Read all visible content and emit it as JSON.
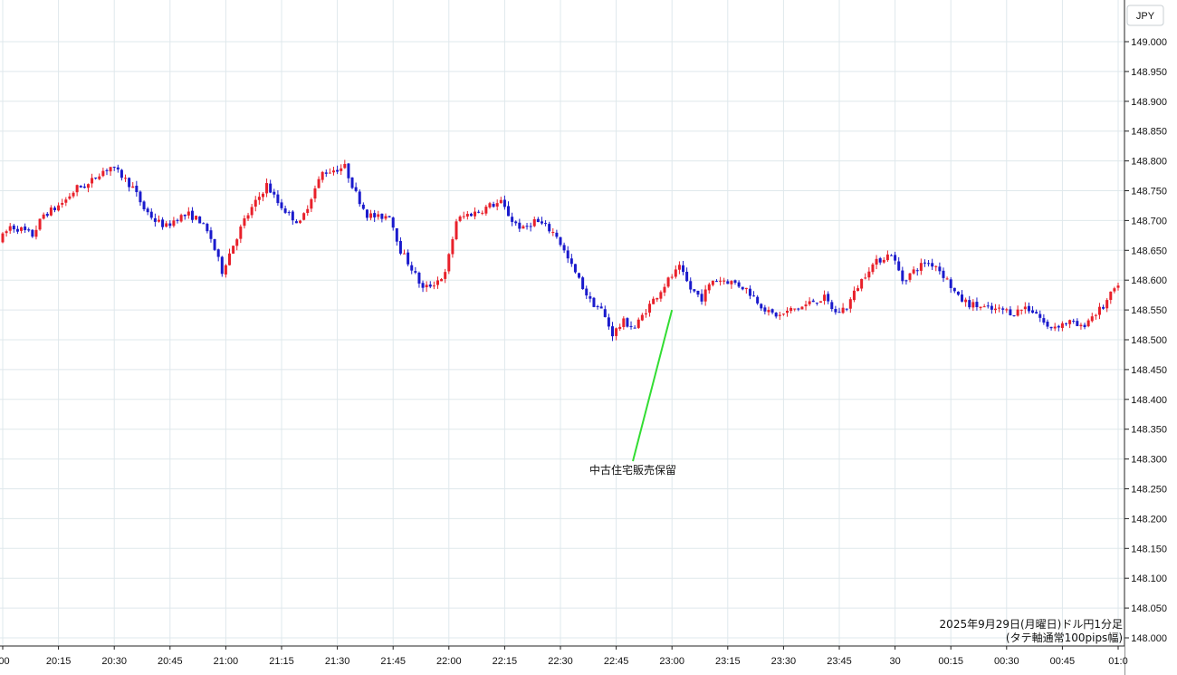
{
  "chart_data": {
    "type": "candlestick",
    "title": "2025年9月29日(月曜日)ドル円1分足",
    "subtitle": "(タテ軸通常100pips幅)",
    "currency_label": "JPY",
    "y_ticks": [
      "149.000",
      "148.950",
      "148.900",
      "148.850",
      "148.800",
      "148.750",
      "148.700",
      "148.650",
      "148.600",
      "148.550",
      "148.500",
      "148.450",
      "148.400",
      "148.350",
      "148.300",
      "148.250",
      "148.200",
      "148.150",
      "148.100",
      "148.050",
      "148.000"
    ],
    "ylim": [
      148.0,
      149.0
    ],
    "x_ticks": [
      ":00",
      "20:15",
      "20:30",
      "20:45",
      "21:00",
      "21:15",
      "21:30",
      "21:45",
      "22:00",
      "22:15",
      "22:30",
      "22:45",
      "23:00",
      "23:15",
      "23:30",
      "23:45",
      "30",
      "00:15",
      "00:30",
      "00:45",
      "01:0"
    ],
    "x_start": "20:00",
    "x_end": "01:00",
    "annotation": {
      "text": "中古住宅販売保留",
      "time": "23:00",
      "value": 148.55
    },
    "grid": true,
    "colors": {
      "up": "#e8202a",
      "down": "#1a1acc",
      "grid": "#dfe8ec",
      "annotation_line": "#33dd33"
    },
    "price_path": [
      [
        "20:00",
        148.665
      ],
      [
        "20:03",
        148.69
      ],
      [
        "20:06",
        148.685
      ],
      [
        "20:09",
        148.675
      ],
      [
        "20:12",
        148.71
      ],
      [
        "20:15",
        148.72
      ],
      [
        "20:18",
        148.735
      ],
      [
        "20:21",
        148.755
      ],
      [
        "20:24",
        148.76
      ],
      [
        "20:27",
        148.78
      ],
      [
        "20:30",
        148.79
      ],
      [
        "20:33",
        148.775
      ],
      [
        "20:36",
        148.755
      ],
      [
        "20:39",
        148.72
      ],
      [
        "20:42",
        148.7
      ],
      [
        "20:45",
        148.69
      ],
      [
        "20:48",
        148.705
      ],
      [
        "20:51",
        148.71
      ],
      [
        "20:54",
        148.7
      ],
      [
        "20:57",
        148.67
      ],
      [
        "21:00",
        148.615
      ],
      [
        "21:03",
        148.66
      ],
      [
        "21:06",
        148.7
      ],
      [
        "21:09",
        148.73
      ],
      [
        "21:12",
        148.76
      ],
      [
        "21:15",
        148.73
      ],
      [
        "21:18",
        148.71
      ],
      [
        "21:21",
        148.695
      ],
      [
        "21:24",
        148.74
      ],
      [
        "21:27",
        148.78
      ],
      [
        "21:30",
        148.785
      ],
      [
        "21:33",
        148.79
      ],
      [
        "21:36",
        148.745
      ],
      [
        "21:39",
        148.71
      ],
      [
        "21:42",
        148.705
      ],
      [
        "21:45",
        148.71
      ],
      [
        "21:48",
        148.65
      ],
      [
        "21:51",
        148.62
      ],
      [
        "21:54",
        148.585
      ],
      [
        "21:57",
        148.595
      ],
      [
        "22:00",
        148.61
      ],
      [
        "22:03",
        148.7
      ],
      [
        "22:06",
        148.71
      ],
      [
        "22:09",
        148.715
      ],
      [
        "22:12",
        148.725
      ],
      [
        "22:15",
        148.73
      ],
      [
        "22:18",
        148.7
      ],
      [
        "22:21",
        148.685
      ],
      [
        "22:24",
        148.7
      ],
      [
        "22:27",
        148.69
      ],
      [
        "22:30",
        148.675
      ],
      [
        "22:33",
        148.635
      ],
      [
        "22:36",
        148.6
      ],
      [
        "22:39",
        148.565
      ],
      [
        "22:42",
        148.55
      ],
      [
        "22:45",
        148.51
      ],
      [
        "22:48",
        148.53
      ],
      [
        "22:51",
        148.52
      ],
      [
        "22:54",
        148.55
      ],
      [
        "22:57",
        148.575
      ],
      [
        "23:00",
        148.6
      ],
      [
        "23:03",
        148.62
      ],
      [
        "23:06",
        148.585
      ],
      [
        "23:09",
        148.57
      ],
      [
        "23:12",
        148.6
      ],
      [
        "23:15",
        148.6
      ],
      [
        "23:18",
        148.595
      ],
      [
        "23:21",
        148.585
      ],
      [
        "23:24",
        148.565
      ],
      [
        "23:27",
        148.545
      ],
      [
        "23:30",
        148.54
      ],
      [
        "23:33",
        148.55
      ],
      [
        "23:36",
        148.555
      ],
      [
        "23:39",
        148.565
      ],
      [
        "23:42",
        148.57
      ],
      [
        "23:45",
        148.545
      ],
      [
        "23:48",
        148.555
      ],
      [
        "23:51",
        148.59
      ],
      [
        "23:54",
        148.62
      ],
      [
        "23:57",
        148.635
      ],
      [
        "00:00",
        148.645
      ],
      [
        "00:03",
        148.6
      ],
      [
        "00:06",
        148.615
      ],
      [
        "00:09",
        148.63
      ],
      [
        "00:12",
        148.625
      ],
      [
        "00:15",
        148.6
      ],
      [
        "00:18",
        148.57
      ],
      [
        "00:21",
        148.56
      ],
      [
        "00:24",
        148.555
      ],
      [
        "00:27",
        148.55
      ],
      [
        "00:30",
        148.55
      ],
      [
        "00:33",
        148.545
      ],
      [
        "00:36",
        148.555
      ],
      [
        "00:39",
        148.545
      ],
      [
        "00:42",
        148.52
      ],
      [
        "00:45",
        148.525
      ],
      [
        "00:48",
        148.53
      ],
      [
        "00:51",
        148.52
      ],
      [
        "00:54",
        148.54
      ],
      [
        "00:57",
        148.555
      ],
      [
        "01:00",
        148.585
      ]
    ]
  }
}
